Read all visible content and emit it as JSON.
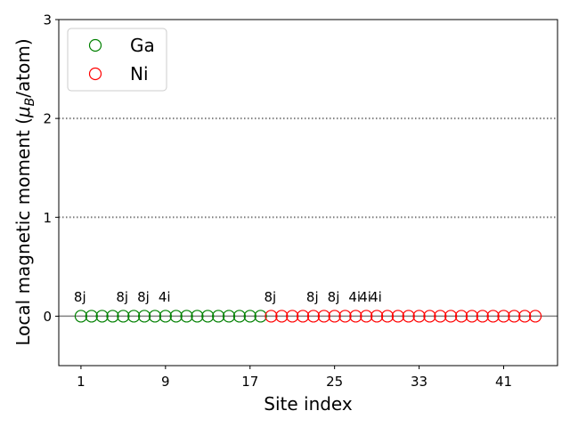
{
  "chart_data": {
    "type": "scatter",
    "title": "",
    "xlabel": "Site index",
    "ylabel_prefix": "Local magnetic moment (",
    "ylabel_mu": "μ",
    "ylabel_sub": "B",
    "ylabel_suffix": "/atom)",
    "xlim": [
      -1.1,
      46.1
    ],
    "ylim": [
      -0.5,
      3
    ],
    "xticks": [
      1,
      9,
      17,
      25,
      33,
      41
    ],
    "yticks": [
      0,
      1,
      2,
      3
    ],
    "hlines": [
      {
        "y": 0,
        "style": "solid",
        "color": "#808080"
      },
      {
        "y": 1,
        "style": "dotted",
        "color": "#808080"
      },
      {
        "y": 2,
        "style": "dotted",
        "color": "#808080"
      }
    ],
    "legend_position": "upper-left",
    "series": [
      {
        "name": "Ga",
        "color": "#008000",
        "marker": "open-circle",
        "x": [
          1,
          2,
          3,
          4,
          5,
          6,
          7,
          8,
          9,
          10,
          11,
          12,
          13,
          14,
          15,
          16,
          17,
          18
        ],
        "y": [
          0,
          0,
          0,
          0,
          0,
          0,
          0,
          0,
          0,
          0,
          0,
          0,
          0,
          0,
          0,
          0,
          0,
          0
        ]
      },
      {
        "name": "Ni",
        "color": "#ff0000",
        "marker": "open-circle",
        "x": [
          19,
          20,
          21,
          22,
          23,
          24,
          25,
          26,
          27,
          28,
          29,
          30,
          31,
          32,
          33,
          34,
          35,
          36,
          37,
          38,
          39,
          40,
          41,
          42,
          43,
          44
        ],
        "y": [
          0,
          0,
          0,
          0,
          0,
          0,
          0,
          0,
          0,
          0,
          0,
          0,
          0,
          0,
          0,
          0,
          0,
          0,
          0,
          0,
          0,
          0,
          0,
          0,
          0,
          0
        ]
      }
    ],
    "annotations": [
      {
        "text": "8j",
        "x": 1,
        "y": 0.2
      },
      {
        "text": "8j",
        "x": 5,
        "y": 0.2
      },
      {
        "text": "8j",
        "x": 7,
        "y": 0.2
      },
      {
        "text": "4i",
        "x": 9,
        "y": 0.2
      },
      {
        "text": "8j",
        "x": 19,
        "y": 0.2
      },
      {
        "text": "8j",
        "x": 23,
        "y": 0.2
      },
      {
        "text": "8j",
        "x": 25,
        "y": 0.2
      },
      {
        "text": "4i",
        "x": 27,
        "y": 0.2
      },
      {
        "text": "4i",
        "x": 28,
        "y": 0.2
      },
      {
        "text": "4i",
        "x": 29,
        "y": 0.2
      }
    ]
  }
}
